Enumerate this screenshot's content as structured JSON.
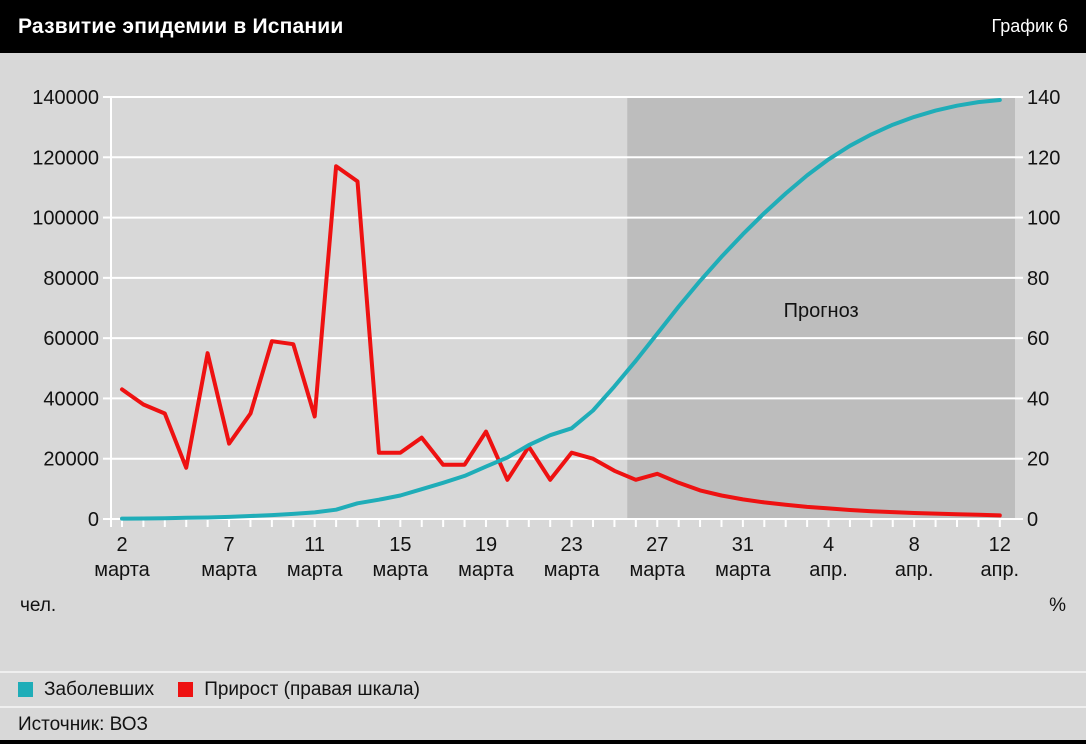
{
  "header": {
    "title": "Развитие эпидемии в Испании",
    "chart_number": "График 6"
  },
  "axis_units": {
    "left": "чел.",
    "right": "%"
  },
  "colors": {
    "page_background": "#d8d8d8",
    "forecast_background": "#bdbdbd",
    "gridline": "#ffffff",
    "header_background": "#000000",
    "infected_line": "#1fadb8",
    "growth_line": "#ee1111",
    "text": "#121212"
  },
  "chart_data": {
    "type": "line",
    "title": "Развитие эпидемии в Испании",
    "x_unit": "day index, 0 = 2 марта, 41 = 12 апр.",
    "x_ticks": [
      {
        "day": 0,
        "label_day": "2",
        "label_month": "марта"
      },
      {
        "day": 5,
        "label_day": "7",
        "label_month": "марта"
      },
      {
        "day": 9,
        "label_day": "11",
        "label_month": "марта"
      },
      {
        "day": 13,
        "label_day": "15",
        "label_month": "марта"
      },
      {
        "day": 17,
        "label_day": "19",
        "label_month": "марта"
      },
      {
        "day": 21,
        "label_day": "23",
        "label_month": "марта"
      },
      {
        "day": 25,
        "label_day": "27",
        "label_month": "марта"
      },
      {
        "day": 29,
        "label_day": "31",
        "label_month": "марта"
      },
      {
        "day": 33,
        "label_day": "4",
        "label_month": "апр."
      },
      {
        "day": 37,
        "label_day": "8",
        "label_month": "апр."
      },
      {
        "day": 41,
        "label_day": "12",
        "label_month": "апр."
      }
    ],
    "y_left": {
      "min": 0,
      "max": 140000,
      "step": 20000,
      "unit": "чел.",
      "tick_labels": [
        "0",
        "20000",
        "40000",
        "60000",
        "80000",
        "100000",
        "120000",
        "140000"
      ]
    },
    "y_right": {
      "min": 0,
      "max": 140,
      "step": 20,
      "unit": "%",
      "tick_labels": [
        "0",
        "20",
        "40",
        "60",
        "80",
        "100",
        "120",
        "140"
      ]
    },
    "grid": true,
    "legend_position": "bottom",
    "forecast": {
      "label": "Прогноз",
      "starts_at_day": 23.6,
      "ends_at_day": 41
    },
    "series": [
      {
        "name": "Заболевших",
        "axis": "left",
        "color": "#1fadb8",
        "values": [
          120,
          170,
          260,
          400,
          500,
          700,
          1000,
          1300,
          1700,
          2200,
          3100,
          5200,
          6400,
          7800,
          9900,
          12000,
          14300,
          17400,
          20400,
          24500,
          27800,
          30100,
          36000,
          44000,
          52500,
          61500,
          70500,
          79000,
          87000,
          94500,
          101500,
          108000,
          114000,
          119300,
          123800,
          127600,
          130800,
          133400,
          135500,
          137100,
          138300,
          139000
        ]
      },
      {
        "name": "Прирост (правая шкала)",
        "axis": "right",
        "color": "#ee1111",
        "values": [
          43,
          38,
          35,
          17,
          55,
          25,
          35,
          59,
          58,
          34,
          117,
          112,
          22,
          22,
          27,
          18,
          18,
          29,
          13,
          24,
          13,
          22,
          20,
          16,
          13,
          15,
          12,
          9.5,
          7.8,
          6.5,
          5.5,
          4.7,
          4.0,
          3.5,
          3.0,
          2.6,
          2.3,
          2.0,
          1.8,
          1.6,
          1.4,
          1.2
        ]
      }
    ]
  },
  "footer": {
    "legend": [
      {
        "label": "Заболевших",
        "color": "#1fadb8"
      },
      {
        "label": "Прирост (правая шкала)",
        "color": "#ee1111"
      }
    ],
    "source": "Источник: ВОЗ"
  }
}
